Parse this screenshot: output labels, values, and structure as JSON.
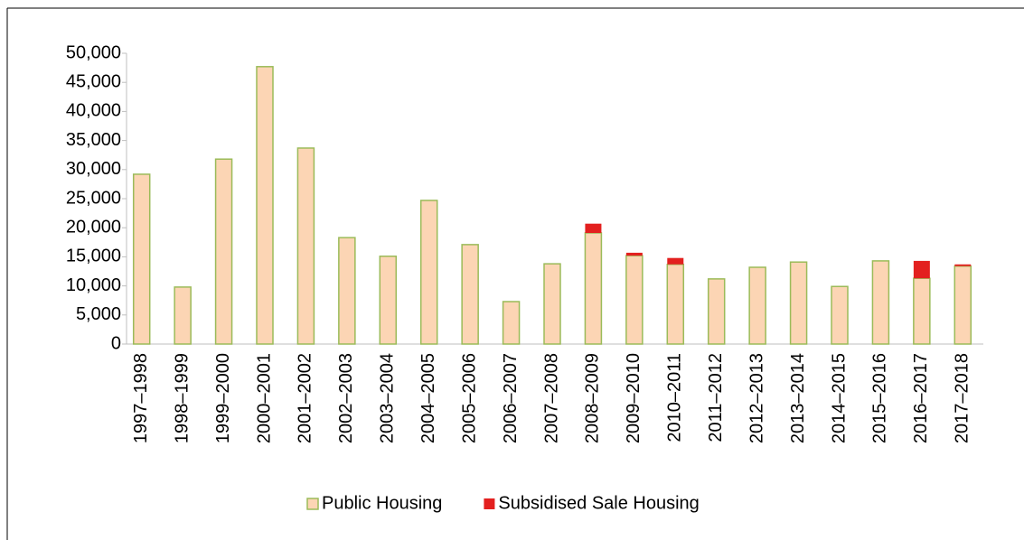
{
  "chart_data": {
    "type": "stacked_bar",
    "categories": [
      "1997–1998",
      "1998–1999",
      "1999–2000",
      "2000–2001",
      "2001–2002",
      "2002–2003",
      "2003–2004",
      "2004–2005",
      "2005–2006",
      "2006–2007",
      "2007–2008",
      "2008–2009",
      "2009–2010",
      "2010–2011",
      "2011–2012",
      "2012–2013",
      "2013–2014",
      "2014–2015",
      "2015–2016",
      "2016–2017",
      "2017–2018"
    ],
    "series": [
      {
        "name": "Public Housing",
        "color": "#fcd5b4",
        "values": [
          29200,
          9800,
          31800,
          47700,
          33700,
          18300,
          15100,
          24700,
          17100,
          7300,
          13800,
          19100,
          15200,
          13700,
          11200,
          13200,
          14100,
          9900,
          14300,
          11300,
          13400
        ]
      },
      {
        "name": "Subsidised Sale Housing",
        "color": "#e3201f",
        "values": [
          0,
          0,
          0,
          0,
          0,
          0,
          0,
          0,
          0,
          0,
          0,
          1600,
          500,
          1100,
          0,
          0,
          0,
          0,
          0,
          3000,
          300
        ]
      }
    ],
    "ylim": [
      0,
      50000
    ],
    "yticks": [
      0,
      {
        "value": 5000,
        "label": "5,000"
      },
      {
        "value": 10000,
        "label": "10,000"
      },
      {
        "value": 15000,
        "label": "15,000"
      },
      {
        "value": 20000,
        "label": "20,000"
      },
      {
        "value": 25000,
        "label": "25,000"
      },
      {
        "value": 30000,
        "label": "30,000"
      },
      {
        "value": 35000,
        "label": "35,000"
      },
      {
        "value": 40000,
        "label": "40,000"
      },
      {
        "value": 45000,
        "label": "45,000"
      },
      {
        "value": 50000,
        "label": "50,000"
      }
    ],
    "grid": false,
    "legend": "bottom"
  }
}
